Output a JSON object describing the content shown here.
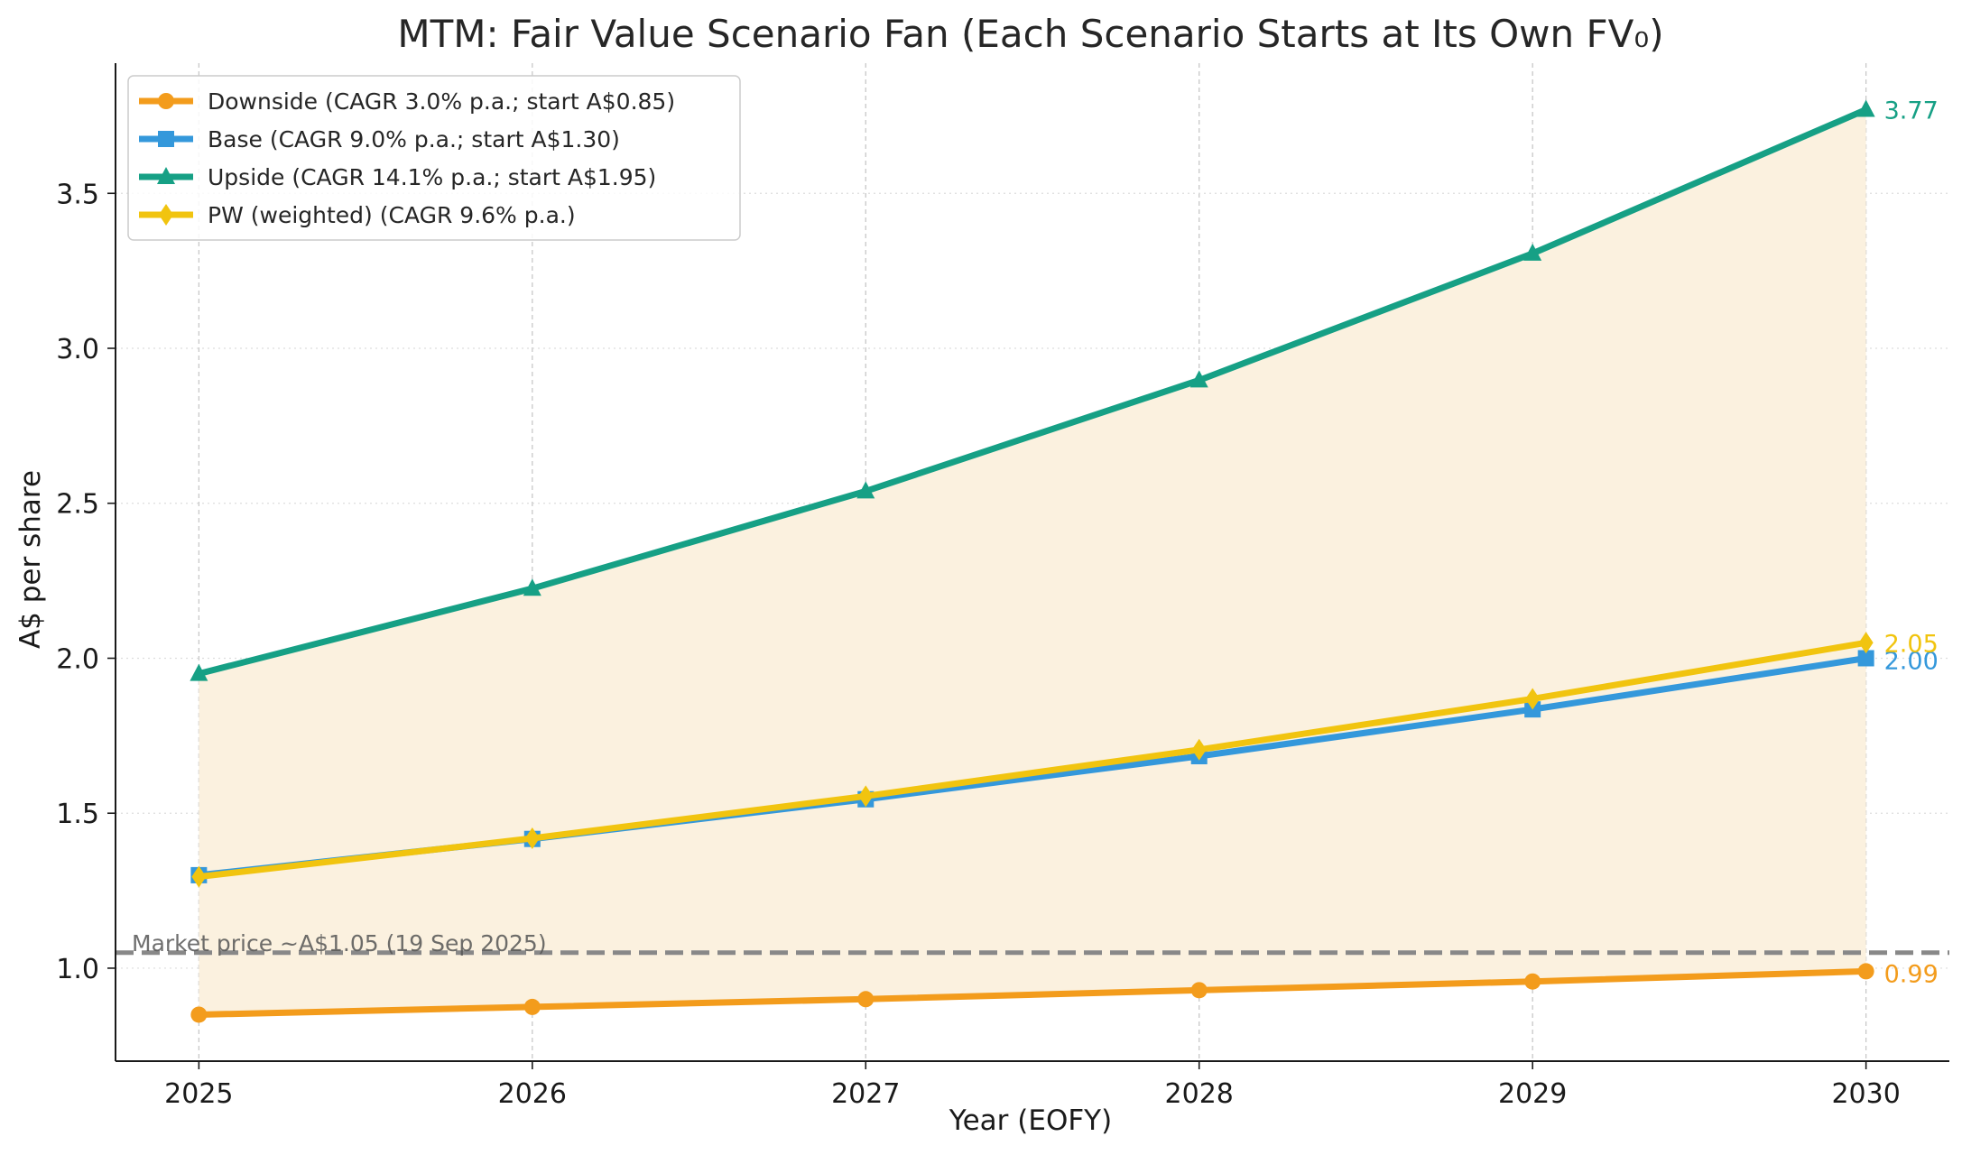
{
  "chart_data": {
    "type": "line",
    "title": "MTM: Fair Value Scenario Fan (Each Scenario Starts at Its Own FV₀)",
    "xlabel": "Year (EOFY)",
    "ylabel": "A$ per share",
    "x": [
      2025,
      2026,
      2027,
      2028,
      2029,
      2030
    ],
    "xlim": [
      2024.75,
      2030.25
    ],
    "ylim": [
      0.7,
      3.92
    ],
    "yticks": [
      1.0,
      1.5,
      2.0,
      2.5,
      3.0,
      3.5
    ],
    "ytick_labels": [
      "1.0",
      "1.5",
      "2.0",
      "2.5",
      "3.0",
      "3.5"
    ],
    "xtick_labels": [
      "2025",
      "2026",
      "2027",
      "2028",
      "2029",
      "2030"
    ],
    "grid": true,
    "legend_position": "top-left",
    "fill_between": {
      "lower": "downside",
      "upper": "upside",
      "color": "#fbf1df"
    },
    "series": [
      {
        "key": "downside",
        "name": "Downside (CAGR 3.0% p.a.; start A$0.85)",
        "color": "#f39c1c",
        "marker": "circle",
        "values": [
          0.85,
          0.875,
          0.9,
          0.929,
          0.957,
          0.99
        ],
        "end_label": "0.99"
      },
      {
        "key": "base",
        "name": "Base (CAGR 9.0% p.a.; start A$1.30)",
        "color": "#3498db",
        "marker": "square",
        "values": [
          1.3,
          1.417,
          1.545,
          1.684,
          1.835,
          2.0
        ],
        "end_label": "2.00"
      },
      {
        "key": "upside",
        "name": "Upside (CAGR 14.1% p.a.; start A$1.95)",
        "color": "#16a085",
        "marker": "triangle",
        "values": [
          1.95,
          2.225,
          2.539,
          2.897,
          3.306,
          3.77
        ],
        "end_label": "3.77"
      },
      {
        "key": "pw",
        "name": "PW (weighted) (CAGR 9.6% p.a.)",
        "color": "#f1c40f",
        "marker": "diamond",
        "values": [
          1.295,
          1.419,
          1.555,
          1.705,
          1.869,
          2.05
        ],
        "end_label": "2.05"
      }
    ],
    "reference_line": {
      "value": 1.05,
      "label": "Market price ~A$1.05 (19 Sep 2025)",
      "color": "#888888"
    }
  }
}
